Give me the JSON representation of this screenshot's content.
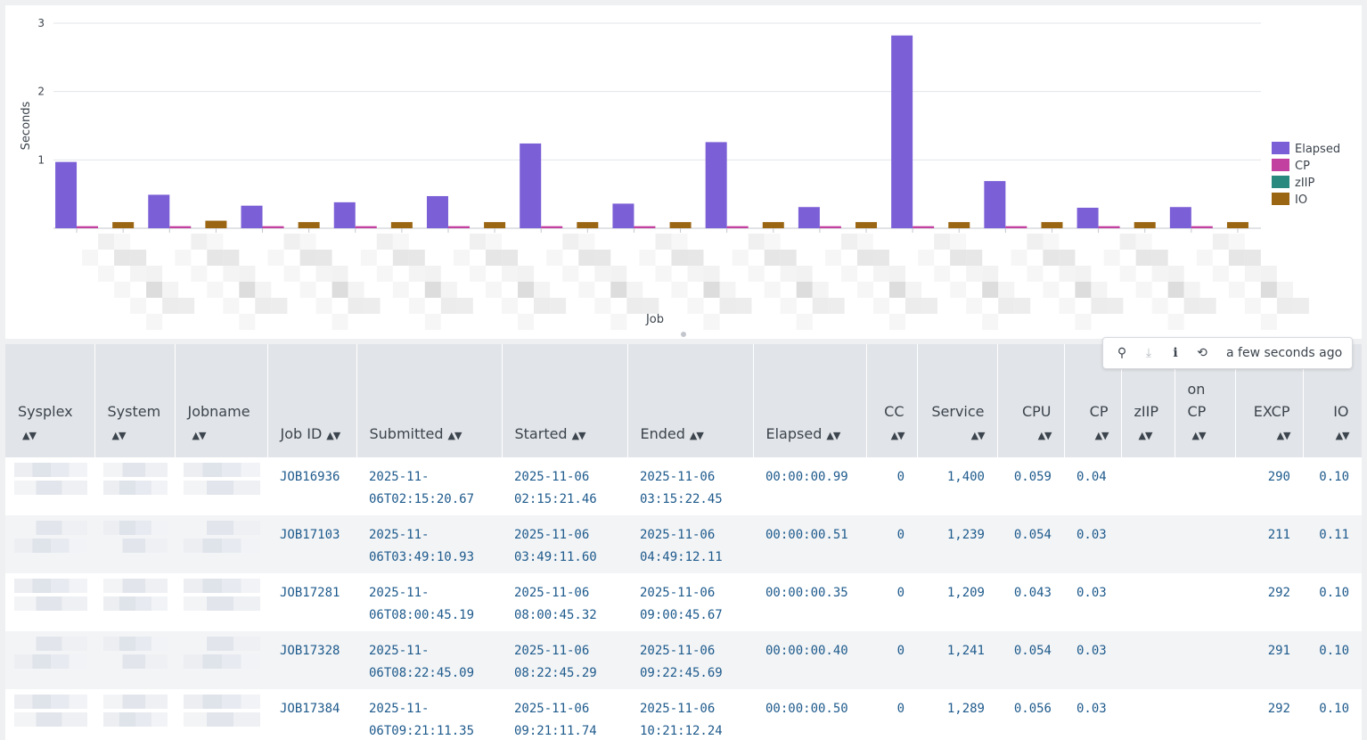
{
  "chart_data": {
    "type": "bar",
    "xlabel": "Job",
    "ylabel": "Seconds",
    "ylim": [
      0,
      3
    ],
    "yticks": [
      1,
      2,
      3
    ],
    "legend_position": "right",
    "series": [
      {
        "name": "Elapsed",
        "color": "#7b5fd6",
        "values": [
          0.97,
          0.0,
          0.49,
          0.0,
          0.33,
          0.0,
          0.38,
          0.0,
          0.47,
          0.0,
          1.24,
          0.0,
          0.36,
          0.0,
          1.26,
          0.0,
          0.31,
          0.0,
          2.82,
          0.0,
          0.69,
          0.0,
          0.3,
          0.0,
          0.31,
          0.0
        ]
      },
      {
        "name": "CP",
        "color": "#c2409f",
        "values": [
          0.03,
          0.0,
          0.03,
          0.0,
          0.03,
          0.0,
          0.03,
          0.0,
          0.03,
          0.0,
          0.03,
          0.0,
          0.03,
          0.0,
          0.03,
          0.0,
          0.03,
          0.0,
          0.03,
          0.0,
          0.03,
          0.0,
          0.03,
          0.0,
          0.03,
          0.0
        ]
      },
      {
        "name": "zIIP",
        "color": "#2b8a7e",
        "values": [
          0,
          0,
          0,
          0,
          0,
          0,
          0,
          0,
          0,
          0,
          0,
          0,
          0,
          0,
          0,
          0,
          0,
          0,
          0,
          0,
          0,
          0,
          0,
          0,
          0,
          0
        ]
      },
      {
        "name": "IO",
        "color": "#9a6614",
        "values": [
          0.0,
          0.09,
          0.0,
          0.11,
          0.0,
          0.09,
          0.0,
          0.09,
          0.0,
          0.09,
          0.0,
          0.09,
          0.0,
          0.09,
          0.0,
          0.09,
          0.0,
          0.09,
          0.0,
          0.09,
          0.0,
          0.09,
          0.0,
          0.09,
          0.0,
          0.09
        ]
      }
    ]
  },
  "toolbar": {
    "search_icon": "⚲",
    "download_icon": "⤓",
    "info_icon": "i",
    "refresh_icon": "⟲",
    "last_updated": "a few seconds ago"
  },
  "table": {
    "sort_glyph": "▲▼",
    "headers": {
      "sysplex": "Sysplex",
      "system": "System",
      "jobname": "Jobname",
      "jobid": "Job ID",
      "submitted": "Submitted",
      "started": "Started",
      "ended": "Ended",
      "elapsed": "Elapsed",
      "cc": "CC",
      "service": "Service",
      "cpu": "CPU",
      "cp": "CP",
      "ziip": "zIIP",
      "oncp_line1": "on",
      "oncp_line2": "CP",
      "excp": "EXCP",
      "io": "IO"
    },
    "rows": [
      {
        "jobid": "JOB16936",
        "sub1": "2025-11-",
        "sub2": "06T02:15:20.67",
        "sta1": "2025-11-06",
        "sta2": "02:15:21.46",
        "end1": "2025-11-06",
        "end2": "03:15:22.45",
        "elapsed": "00:00:00.99",
        "cc": "0",
        "service": "1,400",
        "cpu": "0.059",
        "cp": "0.04",
        "ziip": "",
        "oncp": "",
        "excp": "290",
        "io": "0.10"
      },
      {
        "jobid": "JOB17103",
        "sub1": "2025-11-",
        "sub2": "06T03:49:10.93",
        "sta1": "2025-11-06",
        "sta2": "03:49:11.60",
        "end1": "2025-11-06",
        "end2": "04:49:12.11",
        "elapsed": "00:00:00.51",
        "cc": "0",
        "service": "1,239",
        "cpu": "0.054",
        "cp": "0.03",
        "ziip": "",
        "oncp": "",
        "excp": "211",
        "io": "0.11"
      },
      {
        "jobid": "JOB17281",
        "sub1": "2025-11-",
        "sub2": "06T08:00:45.19",
        "sta1": "2025-11-06",
        "sta2": "08:00:45.32",
        "end1": "2025-11-06",
        "end2": "09:00:45.67",
        "elapsed": "00:00:00.35",
        "cc": "0",
        "service": "1,209",
        "cpu": "0.043",
        "cp": "0.03",
        "ziip": "",
        "oncp": "",
        "excp": "292",
        "io": "0.10"
      },
      {
        "jobid": "JOB17328",
        "sub1": "2025-11-",
        "sub2": "06T08:22:45.09",
        "sta1": "2025-11-06",
        "sta2": "08:22:45.29",
        "end1": "2025-11-06",
        "end2": "09:22:45.69",
        "elapsed": "00:00:00.40",
        "cc": "0",
        "service": "1,241",
        "cpu": "0.054",
        "cp": "0.03",
        "ziip": "",
        "oncp": "",
        "excp": "291",
        "io": "0.10"
      },
      {
        "jobid": "JOB17384",
        "sub1": "2025-11-",
        "sub2": "06T09:21:11.35",
        "sta1": "2025-11-06",
        "sta2": "09:21:11.74",
        "end1": "2025-11-06",
        "end2": "10:21:12.24",
        "elapsed": "00:00:00.50",
        "cc": "0",
        "service": "1,289",
        "cpu": "0.056",
        "cp": "0.03",
        "ziip": "",
        "oncp": "",
        "excp": "292",
        "io": "0.10"
      }
    ]
  }
}
